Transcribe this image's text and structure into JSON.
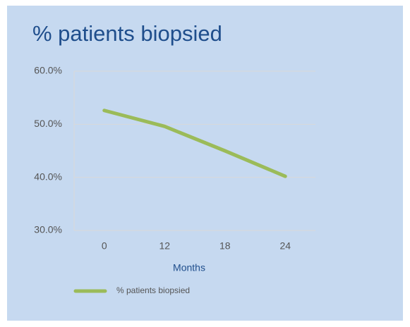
{
  "chart_data": {
    "type": "line",
    "title": "% patients biopsied",
    "categories": [
      "0",
      "12",
      "18",
      "24"
    ],
    "series": [
      {
        "name": "% patients biopsied",
        "color": "#9bbb59",
        "values": [
          52.6,
          49.6,
          45.0,
          40.2
        ]
      }
    ],
    "x_label": "Months",
    "ylim": [
      30,
      60
    ],
    "yticks": [
      {
        "value": 30,
        "label": "30.0%"
      },
      {
        "value": 40,
        "label": "40.0%"
      },
      {
        "value": 50,
        "label": "50.0%"
      },
      {
        "value": 60,
        "label": "60.0%"
      }
    ],
    "grid": true,
    "legend": "bottom-left"
  }
}
